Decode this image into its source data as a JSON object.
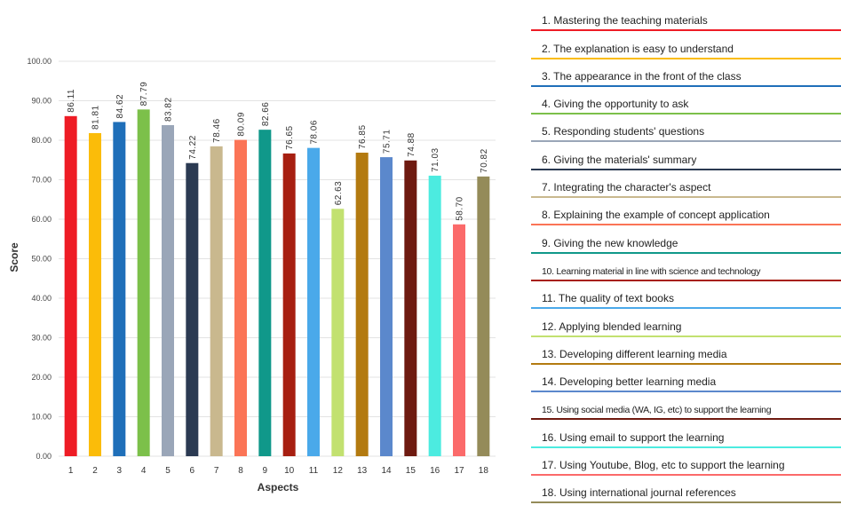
{
  "chart_data": {
    "type": "bar",
    "title": "",
    "xlabel": "Aspects",
    "ylabel": "Score",
    "ylim": [
      0,
      100
    ],
    "yticks": [
      "0.00",
      "10.00",
      "20.00",
      "30.00",
      "40.00",
      "50.00",
      "60.00",
      "70.00",
      "80.00",
      "90.00",
      "100.00"
    ],
    "categories": [
      "1",
      "2",
      "3",
      "4",
      "5",
      "6",
      "7",
      "8",
      "9",
      "10",
      "11",
      "12",
      "13",
      "14",
      "15",
      "16",
      "17",
      "18"
    ],
    "values": [
      86.11,
      81.81,
      84.62,
      87.79,
      83.82,
      74.22,
      78.46,
      80.09,
      82.66,
      76.65,
      78.06,
      62.63,
      76.85,
      75.71,
      74.88,
      71.03,
      58.7,
      70.82
    ],
    "value_labels": [
      "86.11",
      "81.81",
      "84.62",
      "87.79",
      "83.82",
      "74.22",
      "78.46",
      "80.09",
      "82.66",
      "76.65",
      "78.06",
      "62.63",
      "76.85",
      "75.71",
      "74.88",
      "71.03",
      "58.70",
      "70.82"
    ],
    "colors": [
      "#ee1c25",
      "#fbbc09",
      "#1f6fb9",
      "#7cc04a",
      "#9aa6b8",
      "#2b3a52",
      "#c9b88e",
      "#fb7456",
      "#10988a",
      "#a71f11",
      "#4aa9ea",
      "#c2e170",
      "#b37a10",
      "#5b88cc",
      "#6e1a10",
      "#4cebe0",
      "#fb6a6a",
      "#948b59"
    ],
    "grid": true,
    "legend": {
      "position": "right",
      "items": [
        "1. Mastering the teaching materials",
        "2. The explanation is easy to understand",
        "3. The appearance in the front of the class",
        "4. Giving the opportunity to ask",
        "5. Responding students' questions",
        "6. Giving the materials' summary",
        "7. Integrating the character's aspect",
        "8. Explaining the example of concept application",
        "9. Giving the new knowledge",
        "10. Learning material in line with science and technology",
        "11. The quality of text books",
        "12. Applying blended learning",
        "13. Developing different learning media",
        "14. Developing better learning media",
        "15. Using social media (WA, IG, etc) to support the learning",
        "16. Using email to support the learning",
        "17. Using Youtube, Blog, etc to support the learning",
        "18. Using international journal references"
      ],
      "line_colors": [
        "#ee1c25",
        "#fbbc09",
        "#1f6fb9",
        "#7cc04a",
        "#9aa6b8",
        "#2b3a52",
        "#c9b88e",
        "#fb7456",
        "#10988a",
        "#a71f11",
        "#4aa9ea",
        "#c2e170",
        "#b37a10",
        "#5b88cc",
        "#6e1a10",
        "#4cebe0",
        "#fb6a6a",
        "#948b59"
      ]
    }
  }
}
